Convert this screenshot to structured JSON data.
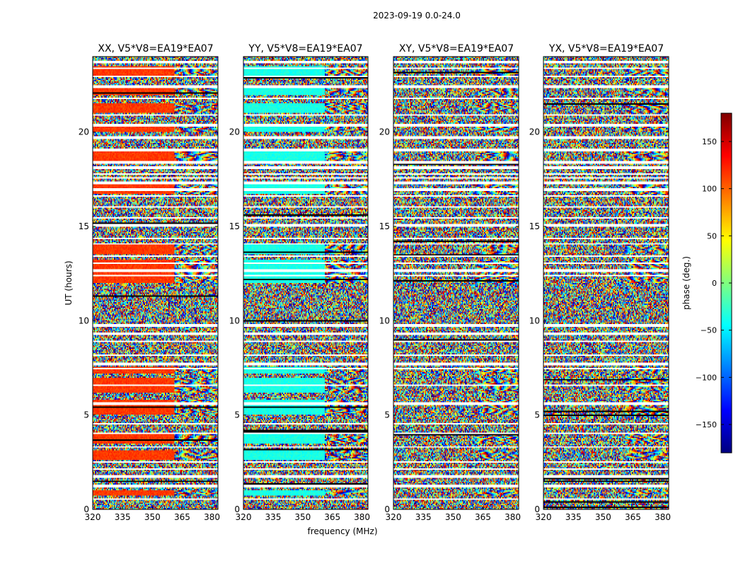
{
  "chart_data": {
    "type": "heatmap",
    "suptitle": "2023-09-19 0.0-24.0",
    "xlabel": "frequency (MHz)",
    "ylabel": "UT (hours)",
    "xlim": [
      320,
      383
    ],
    "ylim": [
      0,
      24
    ],
    "xticks": [
      320,
      335,
      350,
      365,
      380
    ],
    "yticks": [
      0,
      5,
      10,
      15,
      20
    ],
    "panels": [
      {
        "title": "XX, V5*V8=EA19*EA07",
        "palette_bias": 0.82
      },
      {
        "title": "YY, V5*V8=EA19*EA07",
        "palette_bias": 0.4
      },
      {
        "title": "XY, V5*V8=EA19*EA07",
        "palette_bias": null
      },
      {
        "title": "YX, V5*V8=EA19*EA07",
        "palette_bias": null
      }
    ],
    "colorbar": {
      "label": "phase (deg.)",
      "range": [
        -180,
        180
      ],
      "ticks": [
        150,
        100,
        50,
        0,
        -50,
        -100,
        -150
      ],
      "tick_labels": [
        "150",
        "100",
        "50",
        "0",
        "−50",
        "−100",
        "−150"
      ],
      "colormap": [
        "#00007f",
        "#0000ff",
        "#007fff",
        "#00ffff",
        "#7fff7f",
        "#ffff00",
        "#ff7f00",
        "#ff0000",
        "#7f0000"
      ]
    },
    "blank_rows_ut": [
      0.55,
      1.25,
      1.75,
      2.15,
      2.5,
      3.3,
      4.05,
      4.55,
      5.6,
      6.6,
      7.45,
      7.7,
      8.2,
      8.9,
      9.3,
      9.75,
      12.4,
      12.65,
      13.05,
      13.4,
      14.05,
      14.35,
      15.05,
      15.45,
      16.05,
      16.6,
      16.95,
      17.3,
      17.55,
      17.8,
      18.1,
      18.4,
      19.05,
      19.7,
      20.35,
      20.9,
      21.8,
      22.4,
      22.95,
      23.4,
      23.7
    ],
    "coherent_bands_ut": [
      [
        0.7,
        1.0
      ],
      [
        2.6,
        3.1
      ],
      [
        3.5,
        4.0
      ],
      [
        5.0,
        5.8
      ],
      [
        6.2,
        7.0
      ],
      [
        7.2,
        7.6
      ],
      [
        12.0,
        13.2
      ],
      [
        13.5,
        14.0
      ],
      [
        16.7,
        17.3
      ],
      [
        18.5,
        19.0
      ],
      [
        20.0,
        20.4
      ],
      [
        21.0,
        21.5
      ],
      [
        22.0,
        22.3
      ],
      [
        23.0,
        23.5
      ]
    ],
    "fringe_start_mhz": 361
  }
}
